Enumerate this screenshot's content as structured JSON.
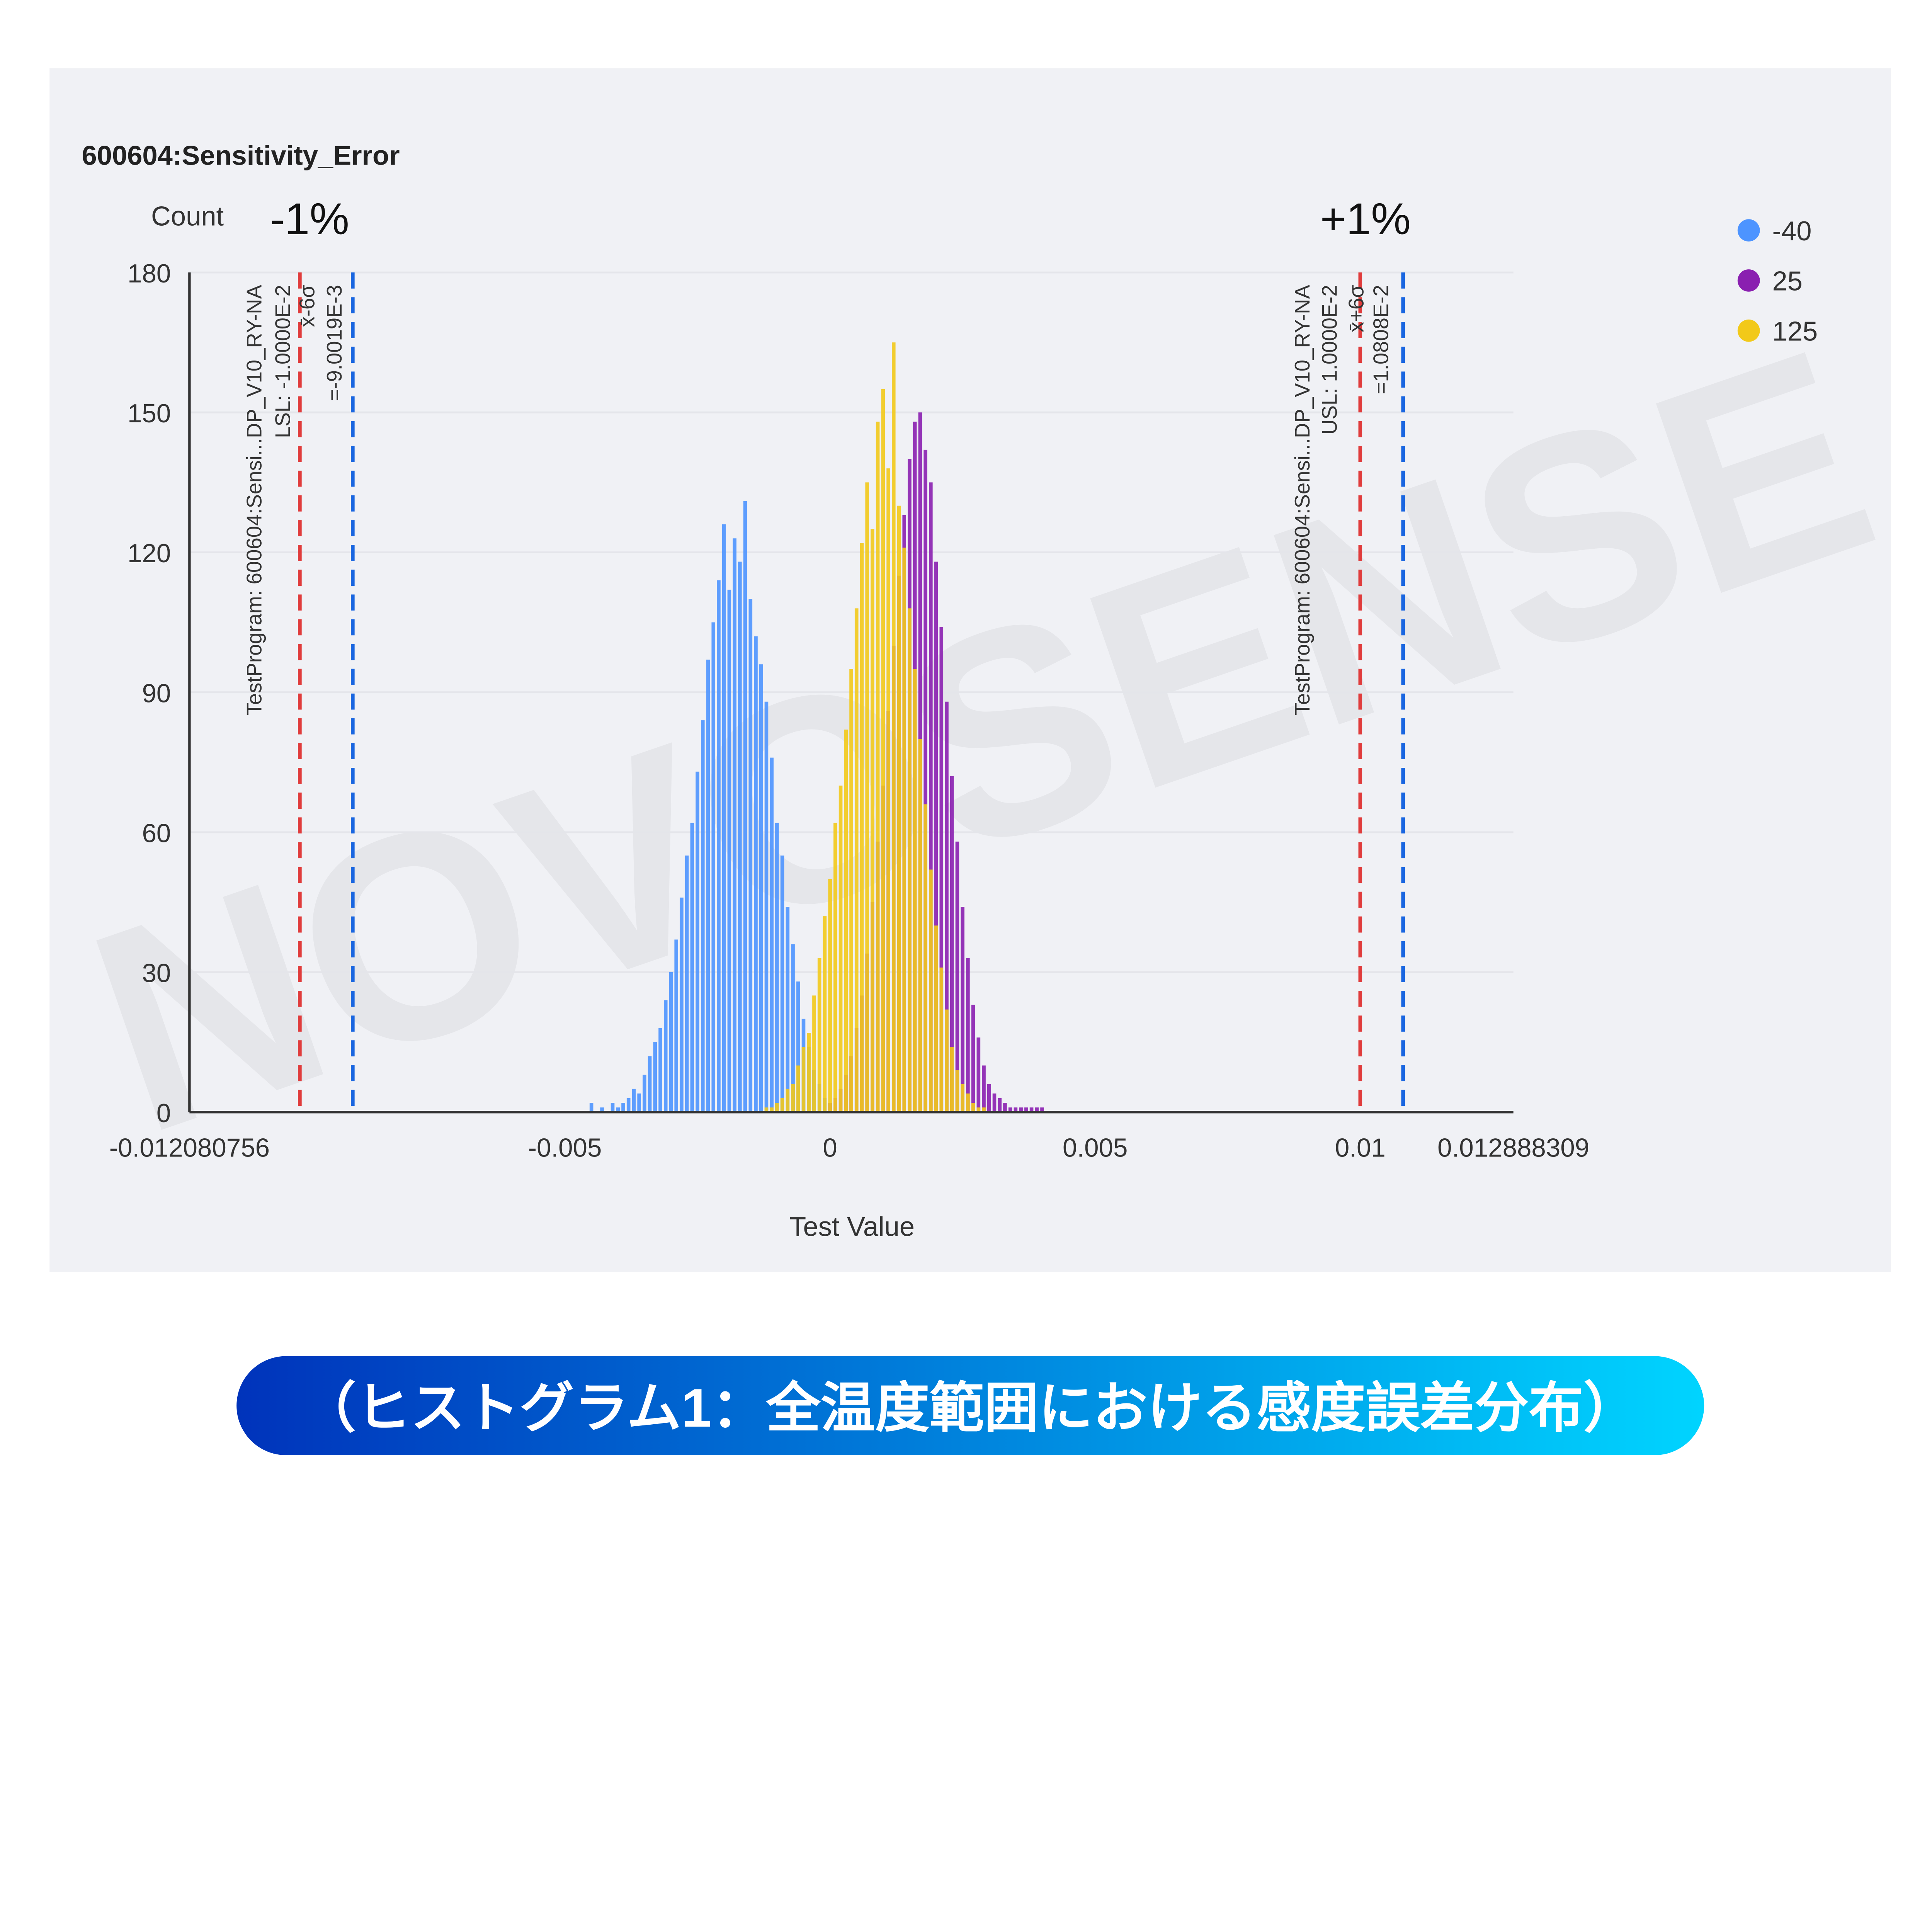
{
  "banner": {
    "text": "（ヒストグラム1：全温度範囲における感度誤差分布）",
    "gradient_start": "#0033bb",
    "gradient_end": "#00d4ff"
  },
  "watermark": "NOVOSENSE",
  "chart_data": {
    "type": "bar",
    "title": "600604:Sensitivity_Error",
    "ylabel": "Count",
    "xlabel": "Test Value",
    "xlim": [
      -0.012080756,
      0.012888309
    ],
    "ylim": [
      0,
      180
    ],
    "grid": true,
    "legend_position": "top-right",
    "x_ticks": [
      "-0.012080756",
      "-0.005",
      "0",
      "0.005",
      "0.01",
      "0.012888309"
    ],
    "x_tick_values": [
      -0.012080756,
      -0.005,
      0,
      0.005,
      0.01,
      0.012888309
    ],
    "y_ticks": [
      0,
      30,
      60,
      90,
      120,
      150,
      180
    ],
    "bin_width": 0.0001,
    "annotations": {
      "minus_pct": "-1%",
      "plus_pct": "+1%",
      "lsl": {
        "value": -0.01,
        "color": "#e03c3c",
        "lines": [
          "TestProgram: 600604:Sensi...DP_V10_RY-NA",
          "LSL: -1.0000E-2"
        ]
      },
      "lower_6sigma": {
        "value": -0.0090019,
        "color": "#1a66e0",
        "lines": [
          "x̄-6σ",
          "=-9.0019E-3"
        ]
      },
      "usl": {
        "value": 0.01,
        "color": "#e03c3c",
        "lines": [
          "TestProgram: 600604:Sensi...DP_V10_RY-NA",
          "USL: 1.0000E-2"
        ]
      },
      "upper_6sigma": {
        "value": 0.010808,
        "color": "#1a66e0",
        "lines": [
          "x̄+6σ",
          "=1.0808E-2"
        ]
      }
    },
    "series": [
      {
        "name": "-40",
        "color": "#4d94ff",
        "x_start": -0.0045,
        "values": [
          2,
          0,
          1,
          0,
          2,
          1,
          2,
          3,
          5,
          4,
          8,
          12,
          15,
          18,
          24,
          30,
          37,
          46,
          55,
          62,
          73,
          84,
          97,
          105,
          114,
          126,
          112,
          123,
          118,
          131,
          110,
          102,
          96,
          88,
          76,
          62,
          55,
          44,
          36,
          28,
          20,
          14,
          9,
          6,
          3,
          2,
          1
        ]
      },
      {
        "name": "25",
        "color": "#8a1fb0",
        "x_start": 0.0,
        "values": [
          2,
          3,
          5,
          8,
          12,
          18,
          25,
          34,
          45,
          58,
          70,
          86,
          100,
          115,
          128,
          140,
          148,
          150,
          142,
          135,
          118,
          104,
          88,
          72,
          58,
          44,
          33,
          23,
          16,
          10,
          6,
          4,
          3,
          2,
          1,
          1,
          1,
          1,
          1,
          1,
          1
        ]
      },
      {
        "name": "125",
        "color": "#f2c919",
        "x_start": -0.0012,
        "values": [
          1,
          1,
          2,
          3,
          5,
          6,
          10,
          14,
          17,
          25,
          33,
          42,
          50,
          62,
          70,
          82,
          95,
          108,
          122,
          135,
          125,
          148,
          155,
          138,
          165,
          130,
          121,
          108,
          95,
          80,
          66,
          52,
          40,
          31,
          22,
          14,
          9,
          6,
          4,
          2,
          1,
          1
        ]
      }
    ]
  }
}
